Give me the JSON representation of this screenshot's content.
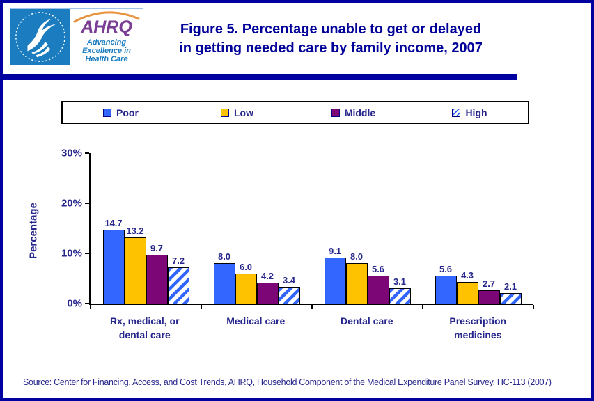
{
  "header": {
    "logo": {
      "ahrq_wordmark": "AHRQ",
      "tagline_line1": "Advancing",
      "tagline_line2": "Excellence in",
      "tagline_line3": "Health Care"
    },
    "title_line1": "Figure 5. Percentage unable to get or delayed",
    "title_line2": "in getting needed care by family income, 2007"
  },
  "colors": {
    "page_border": "#0000A0",
    "divider": "#0000A0",
    "title_text": "#000099",
    "chart_text": "#26268C",
    "poor": "#3366FF",
    "low": "#FFC200",
    "middle": "#7D0677",
    "high_hatch_stripe": "#3366FF"
  },
  "chart_data": {
    "type": "bar",
    "title": "Figure 5. Percentage unable to get or delayed in getting needed care by family income, 2007",
    "categories": [
      "Rx, medical, or dental care",
      "Medical care",
      "Dental care",
      "Prescription medicines"
    ],
    "series": [
      {
        "name": "Poor",
        "color": "#3366FF",
        "values": [
          14.7,
          8.0,
          9.1,
          5.6
        ]
      },
      {
        "name": "Low",
        "color": "#FFC200",
        "values": [
          13.2,
          6.0,
          8.0,
          4.3
        ]
      },
      {
        "name": "Middle",
        "color": "#7D0677",
        "values": [
          9.7,
          4.2,
          5.6,
          2.7
        ]
      },
      {
        "name": "High",
        "color": "hatch",
        "values": [
          7.2,
          3.4,
          3.1,
          2.1
        ]
      }
    ],
    "xlabel": "",
    "ylabel": "Percentage",
    "ylim": [
      0,
      30
    ],
    "yticks": [
      {
        "value": 0,
        "label": "0%"
      },
      {
        "value": 10,
        "label": "10%"
      },
      {
        "value": 20,
        "label": "20%"
      },
      {
        "value": 30,
        "label": "30%"
      }
    ],
    "value_label_decimals": 1,
    "grid": false,
    "legend_position": "top"
  },
  "footer": {
    "source": "Source: Center for Financing, Access, and Cost Trends, AHRQ, Household Component of the Medical Expenditure Panel Survey, HC-113 (2007)"
  }
}
